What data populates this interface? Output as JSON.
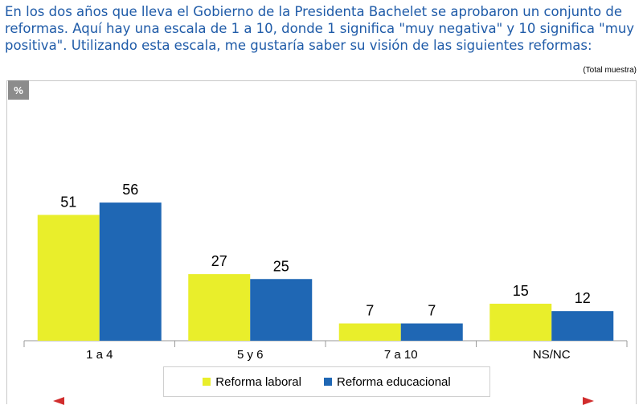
{
  "question_text": "En los dos años que lleva el Gobierno de la Presidenta Bachelet se aprobaron un conjunto de reformas. Aquí hay una escala de 1 a 10, donde 1 significa \"muy negativa\" y 10 significa \"muy positiva\". Utilizando esta escala, me gustaría saber su visión de las siguientes reformas:",
  "sample_note": "(Total muestra)",
  "unit_badge": "%",
  "colors": {
    "question": "#1f5ba8",
    "laboral": "#e9ee2b",
    "educacional": "#1f67b4",
    "arrows": "#d12d2d"
  },
  "chart_data": {
    "type": "bar",
    "categories": [
      "1 a 4",
      "5 y 6",
      "7 a 10",
      "NS/NC"
    ],
    "series": [
      {
        "name": "Reforma laboral",
        "values": [
          51,
          27,
          7,
          15
        ]
      },
      {
        "name": "Reforma educacional",
        "values": [
          56,
          25,
          7,
          12
        ]
      }
    ],
    "ylim": [
      0,
      100
    ],
    "grid": false,
    "legend_position": "bottom",
    "data_labels": true
  },
  "icons": {
    "left": "left-arrow-icon",
    "right": "right-arrow-icon"
  }
}
